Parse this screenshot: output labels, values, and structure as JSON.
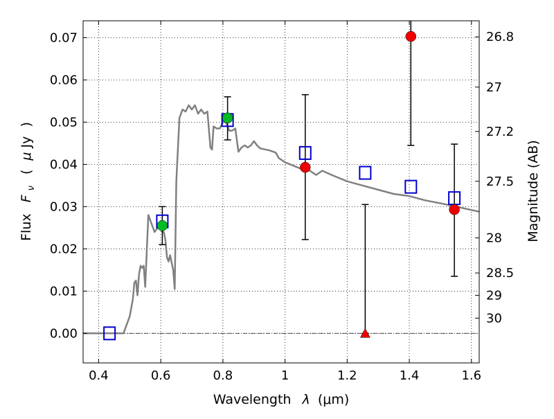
{
  "chart_data": {
    "type": "scatter",
    "xlabel_text": "Wavelength",
    "xlabel_symbol": "λ",
    "xlabel_unit": "(μm)",
    "ylabel_text": "Flux",
    "ylabel_symbol": "F",
    "ylabel_sub": "ν",
    "ylabel_unit_open": "(",
    "ylabel_unit_mu": "μ",
    "ylabel_unit_rest": "Jy",
    "ylabel_unit_close": ")",
    "y2label": "Magnitude (AB)",
    "xlim": [
      0.35,
      1.625
    ],
    "ylim": [
      -0.007,
      0.074
    ],
    "grid": true,
    "x_ticks": [
      {
        "value": 0.4,
        "label": "0.4"
      },
      {
        "value": 0.6,
        "label": "0.6"
      },
      {
        "value": 0.8,
        "label": "0.8"
      },
      {
        "value": 1.0,
        "label": "1"
      },
      {
        "value": 1.2,
        "label": "1.2"
      },
      {
        "value": 1.4,
        "label": "1.4"
      },
      {
        "value": 1.6,
        "label": "1.6"
      }
    ],
    "y_ticks": [
      {
        "value": 0.0,
        "label": "0.00"
      },
      {
        "value": 0.01,
        "label": "0.01"
      },
      {
        "value": 0.02,
        "label": "0.02"
      },
      {
        "value": 0.03,
        "label": "0.03"
      },
      {
        "value": 0.04,
        "label": "0.04"
      },
      {
        "value": 0.05,
        "label": "0.05"
      },
      {
        "value": 0.06,
        "label": "0.06"
      },
      {
        "value": 0.07,
        "label": "0.07"
      }
    ],
    "y2_ticks": [
      {
        "flux": 0.0702,
        "label": "26.8"
      },
      {
        "flux": 0.0583,
        "label": "27"
      },
      {
        "flux": 0.0478,
        "label": "27.2"
      },
      {
        "flux": 0.036,
        "label": "27.5"
      },
      {
        "flux": 0.0226,
        "label": "28"
      },
      {
        "flux": 0.0143,
        "label": "28.5"
      },
      {
        "flux": 0.009,
        "label": "29"
      },
      {
        "flux": 0.0036,
        "label": "30"
      }
    ],
    "model_sed": {
      "color": "#808080",
      "points": [
        [
          0.35,
          0.0
        ],
        [
          0.48,
          0.0
        ],
        [
          0.49,
          0.002
        ],
        [
          0.5,
          0.004
        ],
        [
          0.51,
          0.008
        ],
        [
          0.515,
          0.012
        ],
        [
          0.52,
          0.0125
        ],
        [
          0.525,
          0.009
        ],
        [
          0.53,
          0.014
        ],
        [
          0.535,
          0.016
        ],
        [
          0.54,
          0.0155
        ],
        [
          0.545,
          0.016
        ],
        [
          0.55,
          0.011
        ],
        [
          0.56,
          0.028
        ],
        [
          0.57,
          0.026
        ],
        [
          0.58,
          0.024
        ],
        [
          0.59,
          0.025
        ],
        [
          0.6,
          0.026
        ],
        [
          0.605,
          0.024
        ],
        [
          0.61,
          0.024
        ],
        [
          0.615,
          0.022
        ],
        [
          0.62,
          0.018
        ],
        [
          0.625,
          0.017
        ],
        [
          0.63,
          0.0185
        ],
        [
          0.64,
          0.015
        ],
        [
          0.645,
          0.0105
        ],
        [
          0.65,
          0.036
        ],
        [
          0.66,
          0.051
        ],
        [
          0.67,
          0.053
        ],
        [
          0.68,
          0.0525
        ],
        [
          0.69,
          0.054
        ],
        [
          0.7,
          0.053
        ],
        [
          0.71,
          0.054
        ],
        [
          0.72,
          0.052
        ],
        [
          0.73,
          0.053
        ],
        [
          0.74,
          0.052
        ],
        [
          0.75,
          0.0525
        ],
        [
          0.76,
          0.044
        ],
        [
          0.765,
          0.0435
        ],
        [
          0.77,
          0.049
        ],
        [
          0.78,
          0.0485
        ],
        [
          0.79,
          0.0485
        ],
        [
          0.8,
          0.05
        ],
        [
          0.81,
          0.05
        ],
        [
          0.82,
          0.048
        ],
        [
          0.83,
          0.048
        ],
        [
          0.84,
          0.0485
        ],
        [
          0.85,
          0.043
        ],
        [
          0.86,
          0.044
        ],
        [
          0.87,
          0.0445
        ],
        [
          0.88,
          0.044
        ],
        [
          0.89,
          0.0445
        ],
        [
          0.9,
          0.0455
        ],
        [
          0.91,
          0.0445
        ],
        [
          0.92,
          0.0438
        ],
        [
          0.95,
          0.0433
        ],
        [
          0.97,
          0.0428
        ],
        [
          0.98,
          0.0415
        ],
        [
          1.0,
          0.0405
        ],
        [
          1.05,
          0.039
        ],
        [
          1.08,
          0.0385
        ],
        [
          1.1,
          0.0375
        ],
        [
          1.12,
          0.0385
        ],
        [
          1.15,
          0.0375
        ],
        [
          1.2,
          0.036
        ],
        [
          1.25,
          0.035
        ],
        [
          1.3,
          0.034
        ],
        [
          1.35,
          0.033
        ],
        [
          1.4,
          0.0325
        ],
        [
          1.45,
          0.0315
        ],
        [
          1.5,
          0.0308
        ],
        [
          1.55,
          0.03
        ],
        [
          1.6,
          0.0292
        ],
        [
          1.625,
          0.0288
        ]
      ]
    },
    "model_fluxes": {
      "color": "#0000cc",
      "points": [
        [
          0.435,
          0.0
        ],
        [
          0.605,
          0.0265
        ],
        [
          0.815,
          0.0505
        ],
        [
          1.065,
          0.0427
        ],
        [
          1.258,
          0.038
        ],
        [
          1.405,
          0.0347
        ],
        [
          1.545,
          0.032
        ]
      ]
    },
    "green_detections": {
      "color": "#00bb22",
      "points": [
        {
          "x": 0.605,
          "y": 0.0255,
          "ylo": 0.021,
          "yhi": 0.03
        },
        {
          "x": 0.815,
          "y": 0.051,
          "ylo": 0.0458,
          "yhi": 0.056
        }
      ]
    },
    "red_detections": {
      "color": "#ee0000",
      "points": [
        {
          "x": 1.065,
          "y": 0.0393,
          "ylo": 0.0222,
          "yhi": 0.0565
        },
        {
          "x": 1.405,
          "y": 0.0703,
          "ylo": 0.0445,
          "yhi": 0.0745
        },
        {
          "x": 1.545,
          "y": 0.0293,
          "ylo": 0.0135,
          "yhi": 0.0448
        }
      ]
    },
    "upper_limits": {
      "color": "#ee0000",
      "points": [
        {
          "x": 1.258,
          "y": 0.0,
          "ylo": 0.0,
          "yhi": 0.0305
        }
      ]
    }
  }
}
